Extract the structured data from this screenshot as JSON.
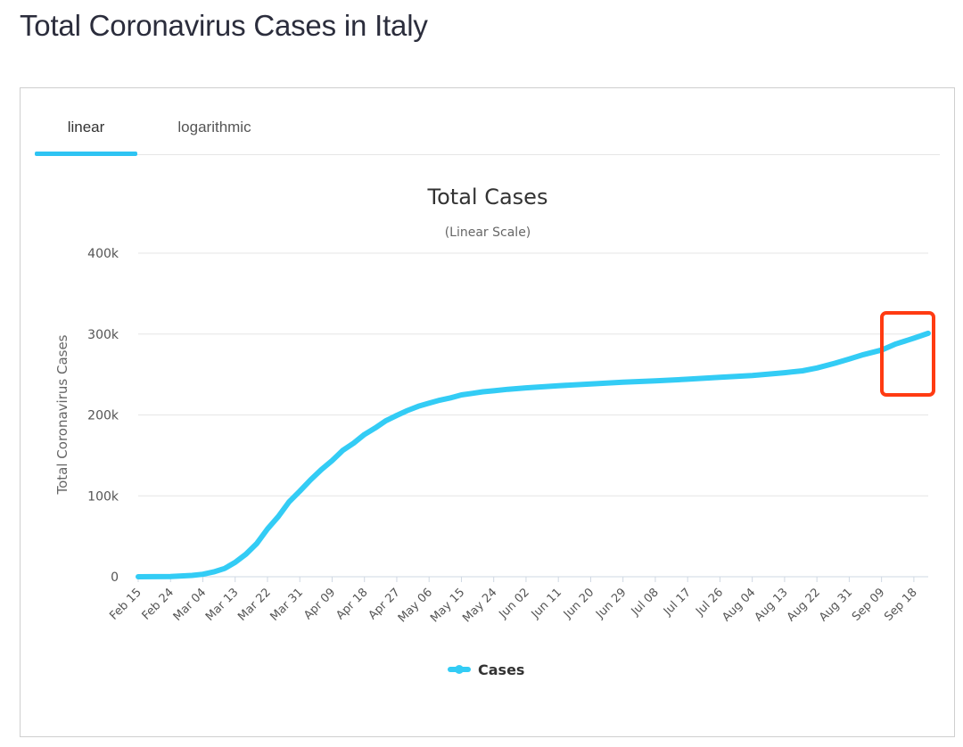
{
  "page": {
    "title": "Total Coronavirus Cases in Italy"
  },
  "tabs": [
    {
      "label": "linear",
      "active": true
    },
    {
      "label": "logarithmic",
      "active": false
    }
  ],
  "colors": {
    "series": "#33ccf5",
    "highlight": "#ff3b12",
    "tab_accent": "#2ec4f3"
  },
  "chart_data": {
    "type": "line",
    "title": "Total Cases",
    "subtitle": "(Linear Scale)",
    "ylabel": "Total Coronavirus Cases",
    "xlabel": "",
    "ylim": [
      0,
      400000
    ],
    "y_ticks": [
      0,
      100000,
      200000,
      300000,
      400000
    ],
    "y_tick_labels": [
      "0",
      "100k",
      "200k",
      "300k",
      "400k"
    ],
    "grid": true,
    "legend_position": "bottom-center",
    "categories": [
      "Feb 15",
      "Feb 24",
      "Mar 04",
      "Mar 13",
      "Mar 22",
      "Mar 31",
      "Apr 09",
      "Apr 18",
      "Apr 27",
      "May 06",
      "May 15",
      "May 24",
      "Jun 02",
      "Jun 11",
      "Jun 20",
      "Jun 29",
      "Jul 08",
      "Jul 17",
      "Jul 26",
      "Aug 04",
      "Aug 13",
      "Aug 22",
      "Aug 31",
      "Sep 09",
      "Sep 18"
    ],
    "series": [
      {
        "name": "Cases",
        "x": [
          "Feb 15",
          "Feb 24",
          "Mar 01",
          "Mar 04",
          "Mar 07",
          "Mar 10",
          "Mar 13",
          "Mar 16",
          "Mar 19",
          "Mar 22",
          "Mar 25",
          "Mar 28",
          "Mar 31",
          "Apr 03",
          "Apr 06",
          "Apr 09",
          "Apr 12",
          "Apr 15",
          "Apr 18",
          "Apr 21",
          "Apr 24",
          "Apr 27",
          "Apr 30",
          "May 03",
          "May 06",
          "May 09",
          "May 12",
          "May 15",
          "May 18",
          "May 21",
          "May 24",
          "May 28",
          "Jun 02",
          "Jun 11",
          "Jun 20",
          "Jun 29",
          "Jul 08",
          "Jul 17",
          "Jul 26",
          "Aug 04",
          "Aug 13",
          "Aug 18",
          "Aug 22",
          "Aug 27",
          "Aug 31",
          "Sep 04",
          "Sep 09",
          "Sep 13",
          "Sep 18",
          "Sep 22"
        ],
        "values": [
          3,
          200,
          1700,
          3100,
          5900,
          10100,
          17700,
          27900,
          41000,
          59100,
          74400,
          92500,
          105800,
          119800,
          132500,
          143600,
          156400,
          165200,
          175900,
          183900,
          192900,
          199400,
          205500,
          210700,
          214500,
          218300,
          221200,
          224800,
          226700,
          228700,
          229900,
          231700,
          233500,
          236100,
          238200,
          240400,
          242100,
          244200,
          246500,
          248800,
          252200,
          254600,
          258100,
          263900,
          269200,
          274600,
          280200,
          287800,
          294900,
          300900
        ]
      }
    ]
  }
}
